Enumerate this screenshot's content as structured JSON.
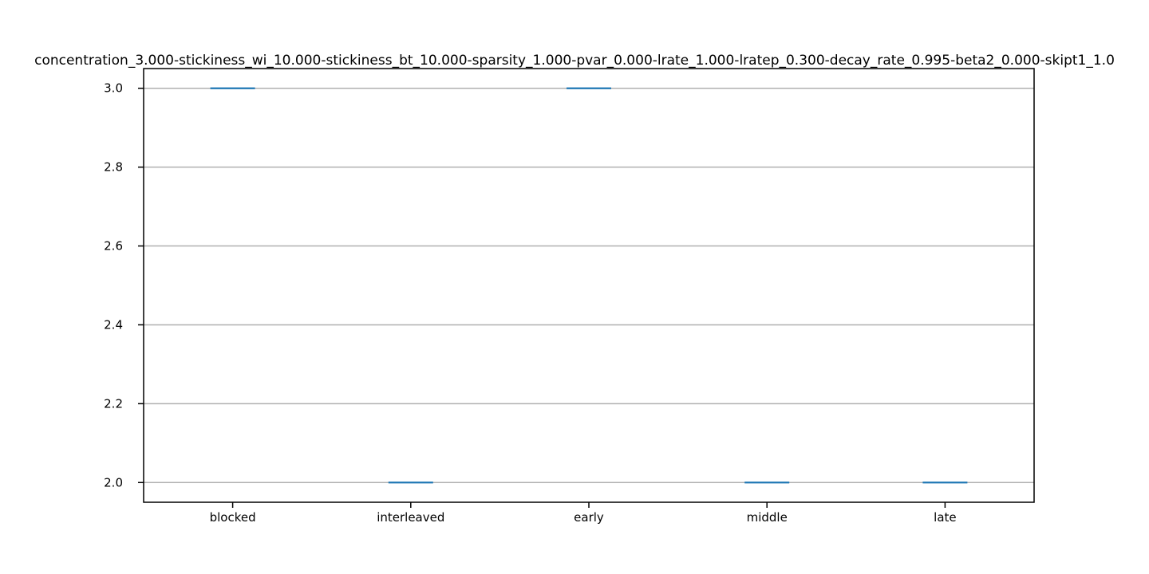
{
  "chart_data": {
    "type": "box",
    "title": "concentration_3.000-stickiness_wi_10.000-stickiness_bt_10.000-sparsity_1.000-pvar_0.000-lrate_1.000-lratep_0.300-decay_rate_0.995-beta2_0.000-skipt1_1.0",
    "xlabel": "",
    "ylabel": "",
    "categories": [
      "blocked",
      "interleaved",
      "early",
      "middle",
      "late"
    ],
    "values": [
      3.0,
      2.0,
      3.0,
      2.0,
      2.0
    ],
    "ylim": [
      1.95,
      3.05
    ],
    "yticks": [
      2.0,
      2.2,
      2.4,
      2.6,
      2.8,
      3.0
    ],
    "ytick_labels": [
      "2.0",
      "2.2",
      "2.4",
      "2.6",
      "2.8",
      "3.0"
    ],
    "grid": "y",
    "median_color": "#1f77b4"
  }
}
